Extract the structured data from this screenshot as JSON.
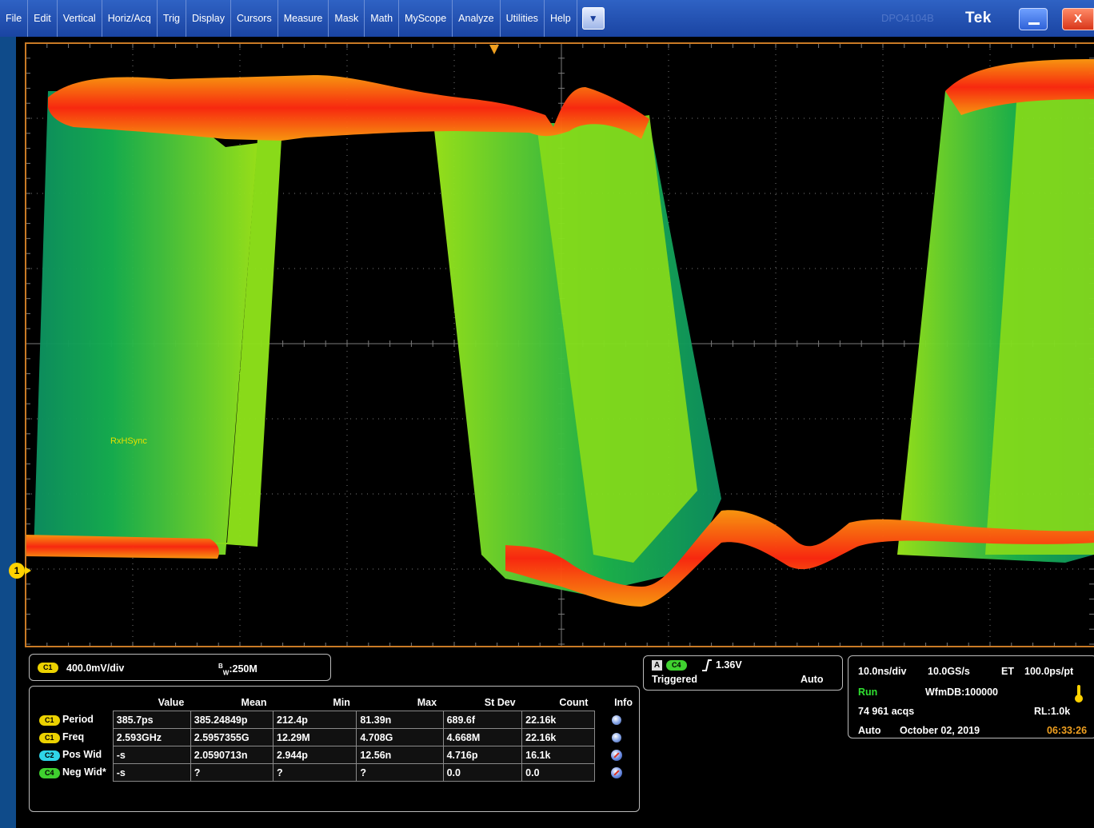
{
  "menu": {
    "items": [
      "File",
      "Edit",
      "Vertical",
      "Horiz/Acq",
      "Trig",
      "Display",
      "Cursors",
      "Measure",
      "Mask",
      "Math",
      "MyScope",
      "Analyze",
      "Utilities",
      "Help"
    ],
    "dropdown_icon": "chevron-down-icon",
    "brand": "Tek",
    "faint_text": "DPO4104B",
    "minimize_icon": "minimize-icon",
    "close_label": "X"
  },
  "display": {
    "waveform_label": "RxHSync",
    "channel_marker": "1",
    "trigger_marker_icon": "trigger-position-marker",
    "colors": {
      "grid": "#8a8a8a",
      "border": "#c97a25",
      "hot": "#ff2a10",
      "warm": "#ff9a10",
      "mid": "#8ee21a",
      "cool": "#13b050"
    }
  },
  "ch1": {
    "chip": "C1",
    "scale": "400.0mV/div",
    "bw_prefix": "B",
    "bw_sub": "W",
    "bw_value": ":250M"
  },
  "trigger": {
    "letter": "A",
    "chip": "C4",
    "level": "1.36V",
    "state": "Triggered",
    "mode": "Auto",
    "slope_icon": "rising-edge-icon"
  },
  "acquisition": {
    "timebase": "10.0ns/div",
    "sample_rate": "10.0GS/s",
    "et": "ET",
    "resolution": "100.0ps/pt",
    "run": "Run",
    "wfmdb": "WfmDB:100000",
    "acqs": "74 961 acqs",
    "record_length": "RL:1.0k",
    "mode": "Auto",
    "date": "October 02, 2019",
    "time": "06:33:26",
    "temperature_icon": "thermometer-icon"
  },
  "measurements": {
    "headers": [
      "Value",
      "Mean",
      "Min",
      "Max",
      "St Dev",
      "Count",
      "Info"
    ],
    "rows": [
      {
        "chip": "C1",
        "name": "Period",
        "value": "385.7ps",
        "mean": "385.24849p",
        "min": "212.4p",
        "max": "81.39n",
        "stdev": "689.6f",
        "count": "22.16k",
        "info": "info-icon"
      },
      {
        "chip": "C1",
        "name": "Freq",
        "value": "2.593GHz",
        "mean": "2.5957355G",
        "min": "12.29M",
        "max": "4.708G",
        "stdev": "4.668M",
        "count": "22.16k",
        "info": "info-icon"
      },
      {
        "chip": "C2",
        "name": "Pos Wid",
        "value": "-s",
        "mean": "2.0590713n",
        "min": "2.944p",
        "max": "12.56n",
        "stdev": "4.716p",
        "count": "16.1k",
        "info": "warning-icon"
      },
      {
        "chip": "C4",
        "name": "Neg Wid*",
        "value": "-s",
        "mean": "?",
        "min": "?",
        "max": "?",
        "stdev": "0.0",
        "count": "0.0",
        "info": "warning-icon"
      }
    ]
  }
}
